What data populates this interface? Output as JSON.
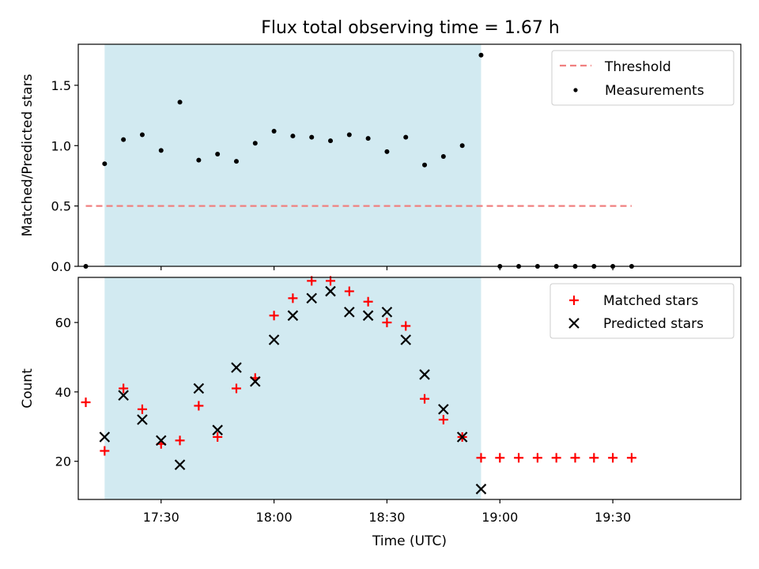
{
  "title": "Flux total observing time = 1.67 h",
  "colors": {
    "observing_window": "#add8e6",
    "threshold": "#f08080",
    "matched": "#ff0000",
    "predicted": "#000000",
    "measurements": "#000000"
  },
  "chart_data": [
    {
      "type": "scatter",
      "panel": "top",
      "ylabel": "Matched/Predicted stars",
      "xlabel": "",
      "ylim": [
        0,
        1.84
      ],
      "xlim": [
        "17:08",
        "20:04"
      ],
      "yticks": [
        "0.0",
        "0.5",
        "1.0",
        "1.5"
      ],
      "shaded_window": [
        "17:15",
        "18:55"
      ],
      "legend_position": "top-right",
      "series": [
        {
          "name": "Threshold",
          "kind": "dashed-line",
          "x": [
            "17:10",
            "19:35"
          ],
          "y": [
            0.5,
            0.5
          ]
        },
        {
          "name": "Measurements",
          "kind": "dots",
          "x": [
            "17:10",
            "17:15",
            "17:20",
            "17:25",
            "17:30",
            "17:35",
            "17:40",
            "17:45",
            "17:50",
            "17:55",
            "18:00",
            "18:05",
            "18:10",
            "18:15",
            "18:20",
            "18:25",
            "18:30",
            "18:35",
            "18:40",
            "18:45",
            "18:50",
            "18:55",
            "19:00",
            "19:05",
            "19:10",
            "19:15",
            "19:20",
            "19:25",
            "19:30",
            "19:35"
          ],
          "y": [
            0.0,
            0.85,
            1.05,
            1.09,
            0.96,
            1.36,
            0.88,
            0.93,
            0.87,
            1.02,
            1.12,
            1.08,
            1.07,
            1.04,
            1.09,
            1.06,
            0.95,
            1.07,
            0.84,
            0.91,
            1.0,
            1.75,
            0,
            0,
            0,
            0,
            0,
            0,
            0,
            0
          ]
        }
      ]
    },
    {
      "type": "scatter",
      "panel": "bottom",
      "xlabel": "Time (UTC)",
      "ylabel": "Count",
      "ylim": [
        9,
        73
      ],
      "xlim": [
        "17:08",
        "20:04"
      ],
      "yticks": [
        "20",
        "40",
        "60"
      ],
      "xticks": [
        "17:30",
        "18:00",
        "18:30",
        "19:00",
        "19:30"
      ],
      "shaded_window": [
        "17:15",
        "18:55"
      ],
      "legend_position": "top-right",
      "series": [
        {
          "name": "Matched stars",
          "marker": "+",
          "x": [
            "17:10",
            "17:15",
            "17:20",
            "17:25",
            "17:30",
            "17:35",
            "17:40",
            "17:45",
            "17:50",
            "17:55",
            "18:00",
            "18:05",
            "18:10",
            "18:15",
            "18:20",
            "18:25",
            "18:30",
            "18:35",
            "18:40",
            "18:45",
            "18:50",
            "18:55",
            "19:00",
            "19:05",
            "19:10",
            "19:15",
            "19:20",
            "19:25",
            "19:30",
            "19:35"
          ],
          "y": [
            37,
            23,
            41,
            35,
            25,
            26,
            36,
            27,
            41,
            44,
            62,
            67,
            72,
            72,
            69,
            66,
            60,
            59,
            38,
            32,
            27,
            21,
            21,
            21,
            21,
            21,
            21,
            21,
            21,
            21
          ]
        },
        {
          "name": "Predicted stars",
          "marker": "x",
          "x": [
            "17:15",
            "17:20",
            "17:25",
            "17:30",
            "17:35",
            "17:40",
            "17:45",
            "17:50",
            "17:55",
            "18:00",
            "18:05",
            "18:10",
            "18:15",
            "18:20",
            "18:25",
            "18:30",
            "18:35",
            "18:40",
            "18:45",
            "18:50",
            "18:55"
          ],
          "y": [
            27,
            39,
            32,
            26,
            19,
            41,
            29,
            47,
            43,
            55,
            62,
            67,
            69,
            63,
            62,
            63,
            55,
            45,
            35,
            27,
            12
          ]
        }
      ]
    }
  ]
}
